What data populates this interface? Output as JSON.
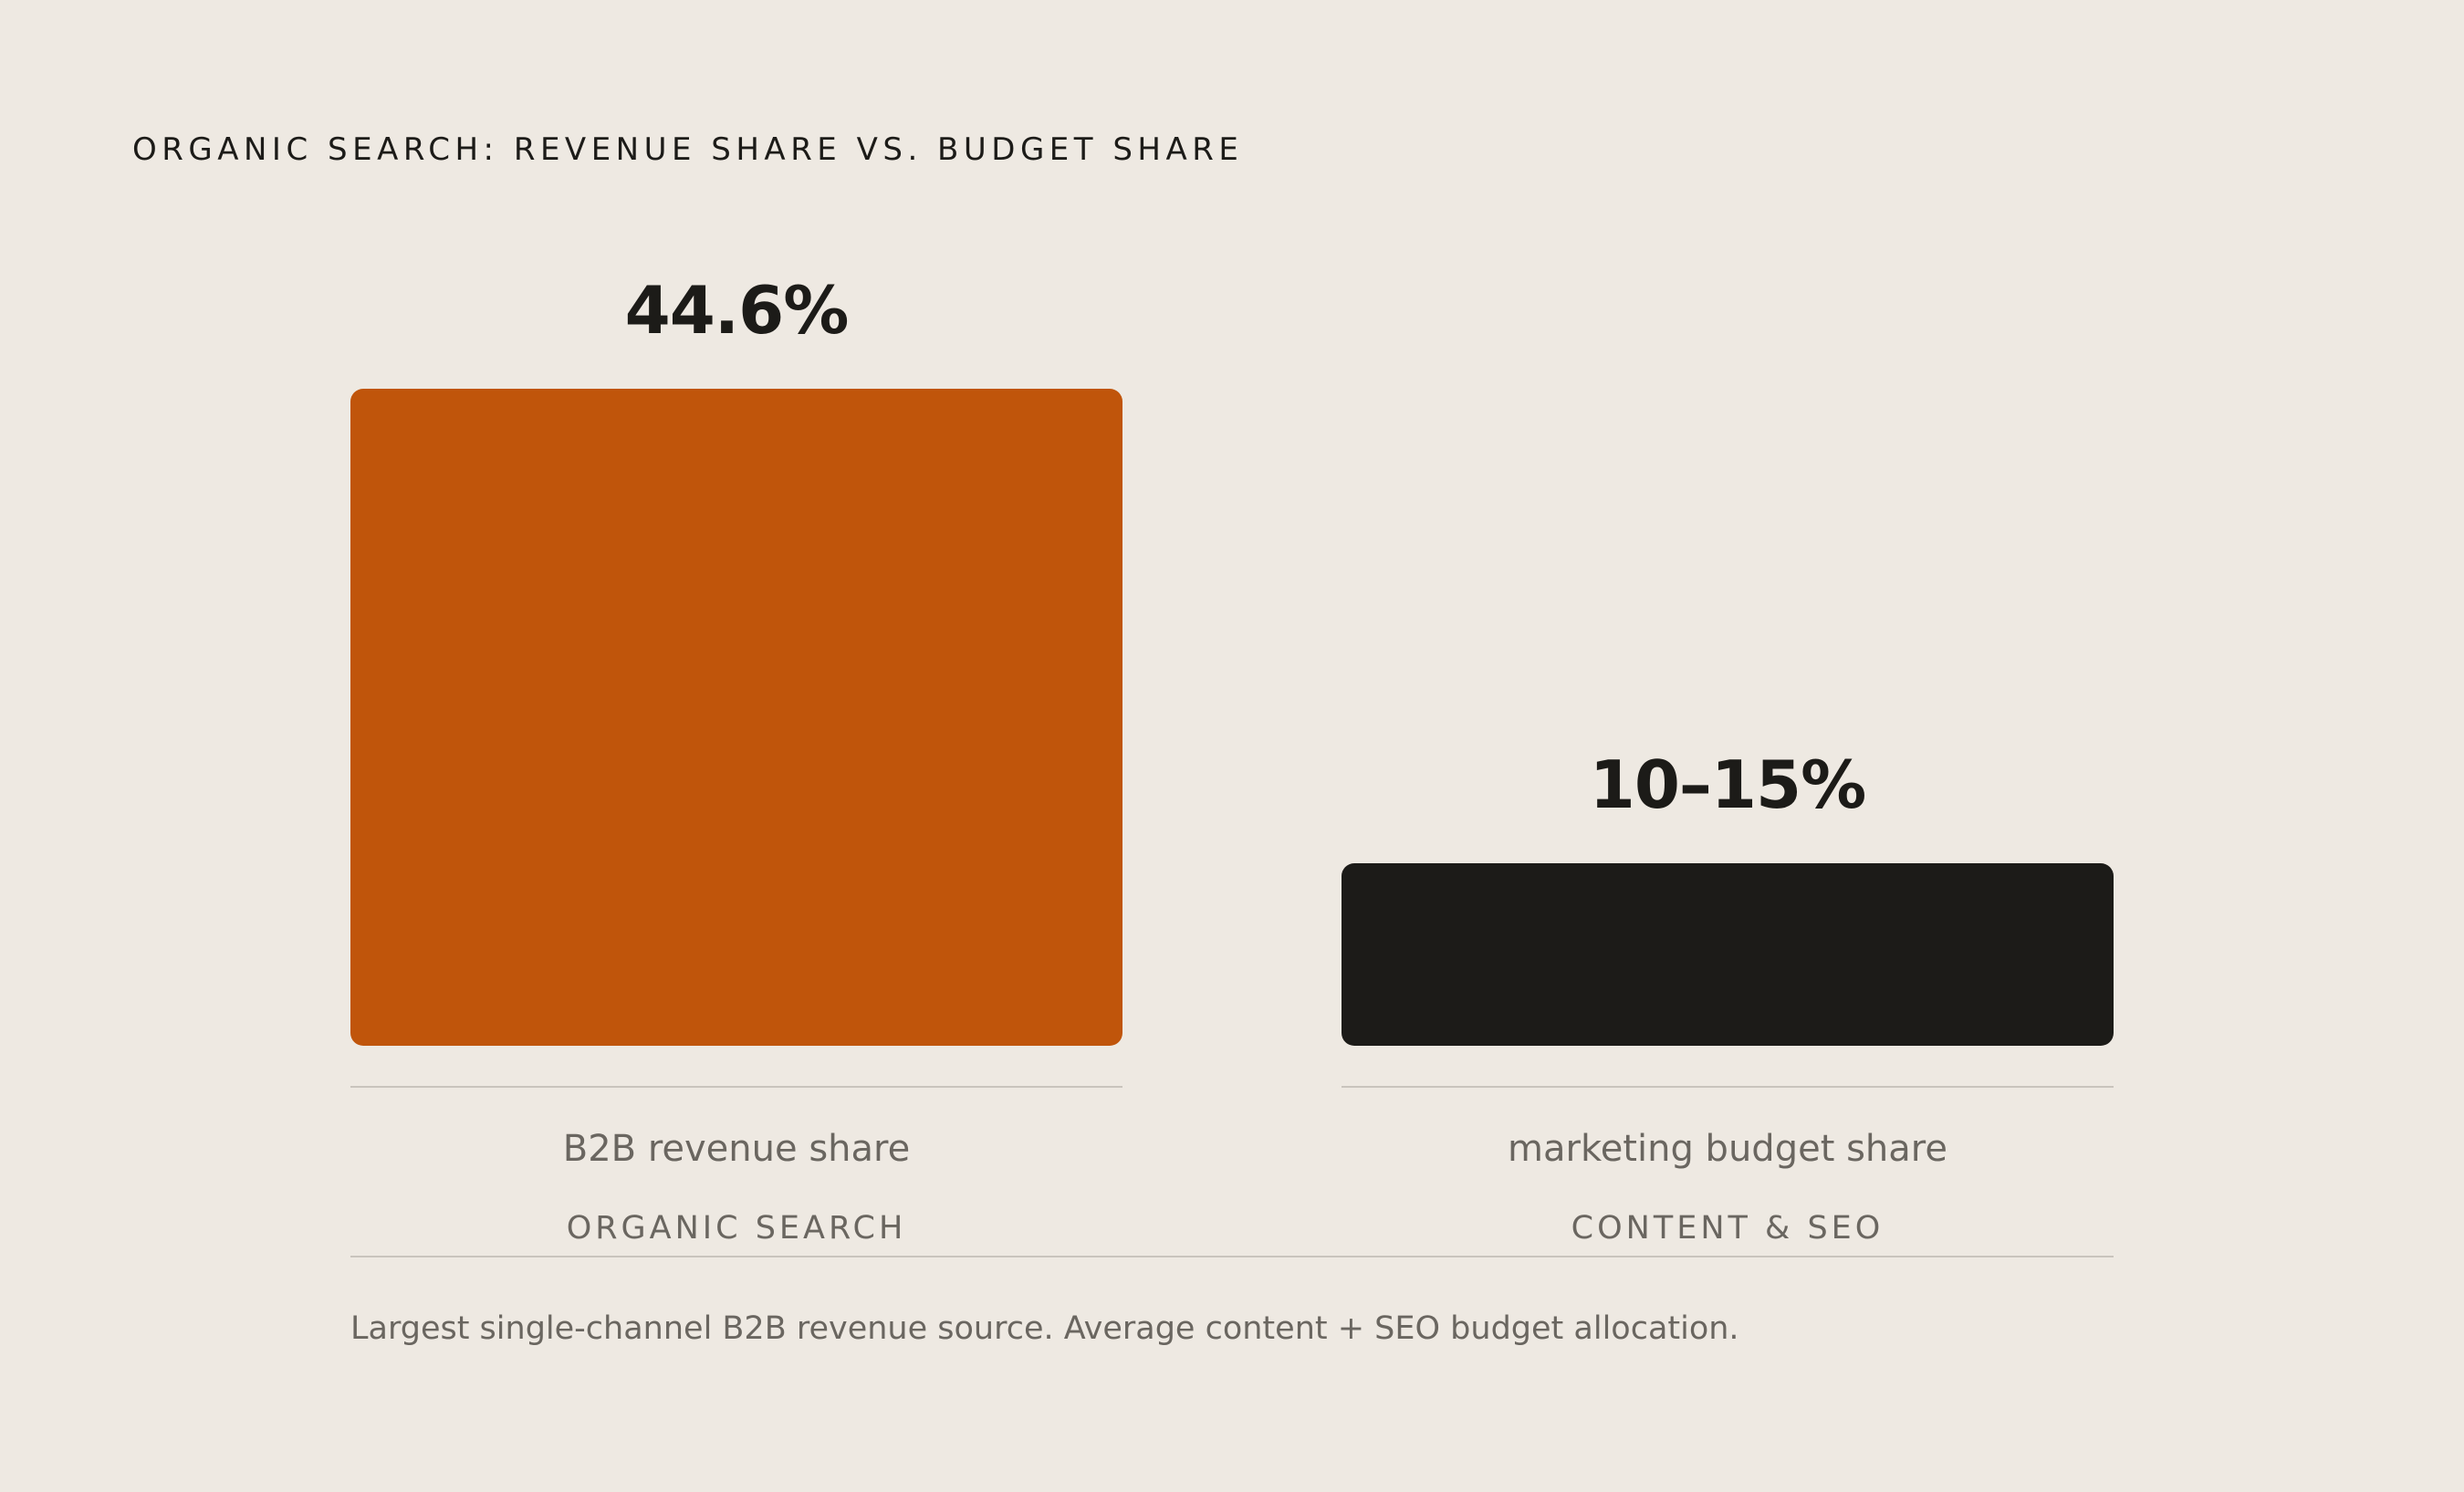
{
  "chart_data": {
    "type": "bar",
    "title": "ORGANIC SEARCH: REVENUE SHARE VS. BUDGET SHARE",
    "categories": [
      "B2B revenue share",
      "marketing budget share"
    ],
    "category_sublabels": [
      "ORGANIC SEARCH",
      "CONTENT & SEO"
    ],
    "values": [
      44.6,
      12.5
    ],
    "value_labels": [
      "44.6%",
      "10–15%"
    ],
    "value_ranges": [
      [
        44.6,
        44.6
      ],
      [
        10,
        15
      ]
    ],
    "colors": [
      "#C0550B",
      "#1C1B18"
    ],
    "ylim": [
      0,
      44.6
    ],
    "grid": false,
    "legend": "none",
    "footnote": "Largest single-channel B2B revenue source. Average content + SEO budget allocation."
  }
}
